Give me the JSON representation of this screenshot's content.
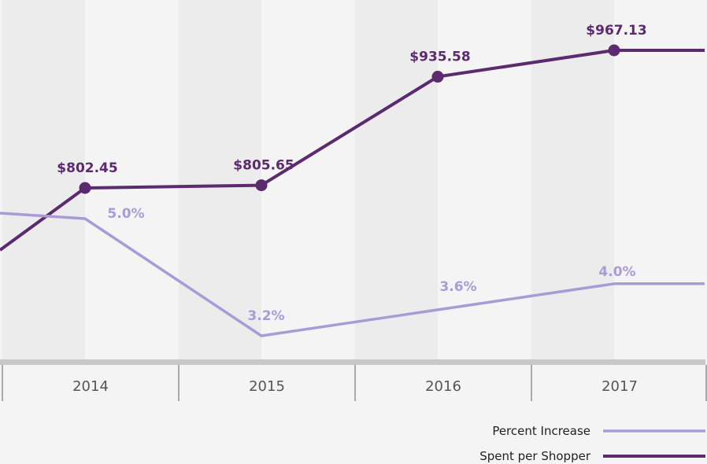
{
  "chart_data": {
    "type": "line",
    "categories": [
      "2014",
      "2015",
      "2016",
      "2017"
    ],
    "series": [
      {
        "name": "Spent per Shopper",
        "values": [
          802.45,
          805.65,
          935.58,
          967.13
        ],
        "labels": [
          "$802.45",
          "$805.65",
          "$935.58",
          "$967.13"
        ],
        "color": "#5c2a6e",
        "markers": true
      },
      {
        "name": "Percent Increase",
        "values": [
          5.0,
          3.2,
          3.6,
          4.0
        ],
        "labels": [
          "5.0%",
          "3.2%",
          "3.6%",
          "4.0%"
        ],
        "color": "#a99bd6",
        "markers": false
      }
    ],
    "legend": "bottom-right",
    "grid": false
  }
}
